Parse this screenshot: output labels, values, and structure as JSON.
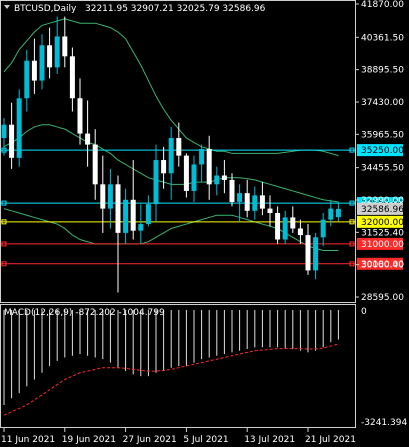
{
  "header": {
    "symbol": "BTCUSD,Daily",
    "ohlc": "32211.95 32907.21 32025.79 32586.96"
  },
  "chart_data": {
    "type": "candlestick",
    "price_axis": {
      "min": 28595,
      "max": 41870,
      "ticks": [
        "41870.00",
        "40361.50",
        "38895.50",
        "37430.00",
        "35965.50",
        "34455.50",
        "32990.00",
        "31525.40",
        "30060.40",
        "28595.00"
      ]
    },
    "x_labels": [
      "11 Jun 2021",
      "19 Jun 2021",
      "27 Jun 2021",
      "5 Jul 2021",
      "13 Jul 2021",
      "21 Jul 2021"
    ],
    "candles": [
      [
        35800,
        36700,
        35000,
        36400
      ],
      [
        36400,
        37400,
        34400,
        34900
      ],
      [
        34900,
        38000,
        34500,
        37600
      ],
      [
        37600,
        39800,
        37000,
        39300
      ],
      [
        39300,
        40300,
        37800,
        38400
      ],
      [
        38400,
        40500,
        38000,
        40000
      ],
      [
        40000,
        40800,
        38500,
        39000
      ],
      [
        39000,
        41300,
        38700,
        40400
      ],
      [
        40400,
        41300,
        39000,
        39500
      ],
      [
        39500,
        39900,
        37000,
        37600
      ],
      [
        37600,
        38500,
        35500,
        36000
      ],
      [
        36000,
        37500,
        34500,
        35500
      ],
      [
        35500,
        36200,
        33000,
        33700
      ],
      [
        33700,
        35000,
        31500,
        32600
      ],
      [
        32600,
        34400,
        31700,
        33700
      ],
      [
        33700,
        34100,
        28800,
        31500
      ],
      [
        31500,
        33500,
        31000,
        33000
      ],
      [
        33000,
        34800,
        31200,
        31600
      ],
      [
        31600,
        32800,
        31000,
        31900
      ],
      [
        31900,
        33200,
        31800,
        32800
      ],
      [
        32800,
        35500,
        32000,
        34800
      ],
      [
        34800,
        35400,
        33500,
        34200
      ],
      [
        34200,
        36300,
        33000,
        35800
      ],
      [
        35800,
        36500,
        34500,
        35000
      ],
      [
        35000,
        35100,
        33100,
        33400
      ],
      [
        33400,
        35000,
        32900,
        34600
      ],
      [
        34600,
        35500,
        33800,
        35300
      ],
      [
        35300,
        35900,
        33000,
        33700
      ],
      [
        33700,
        34500,
        33200,
        34100
      ],
      [
        34100,
        34800,
        33300,
        33900
      ],
      [
        33900,
        34200,
        32700,
        32900
      ],
      [
        32900,
        33700,
        32000,
        33300
      ],
      [
        33300,
        33900,
        32200,
        32500
      ],
      [
        32500,
        33600,
        32100,
        33200
      ],
      [
        33200,
        33800,
        32300,
        32600
      ],
      [
        32600,
        33200,
        31800,
        32400
      ],
      [
        32400,
        32700,
        31000,
        31200
      ],
      [
        31200,
        32500,
        31000,
        32200
      ],
      [
        32200,
        32700,
        31500,
        31700
      ],
      [
        31700,
        32100,
        31000,
        31400
      ],
      [
        31400,
        31900,
        29600,
        29800
      ],
      [
        29800,
        31500,
        29400,
        31300
      ],
      [
        31300,
        32400,
        30900,
        32100
      ],
      [
        32100,
        33000,
        31800,
        32600
      ],
      [
        32211.95,
        32907.21,
        32025.79,
        32586.96
      ]
    ],
    "bollinger": {
      "upper": [
        38800,
        39200,
        39800,
        40200,
        40600,
        40900,
        41000,
        41100,
        41200,
        41100,
        41000,
        41000,
        41000,
        40900,
        40800,
        40600,
        40300,
        39700,
        39100,
        38400,
        37700,
        37100,
        36600,
        36200,
        35800,
        35600,
        35400,
        35300,
        35200,
        35200,
        35100,
        35100,
        35100,
        35100,
        35100,
        35100,
        35100,
        35150,
        35200,
        35250,
        35250,
        35250,
        35200,
        35100,
        35000
      ],
      "middle": [
        35400,
        35600,
        35800,
        36100,
        36300,
        36400,
        36400,
        36300,
        36200,
        36000,
        35800,
        35600,
        35500,
        35300,
        35100,
        34800,
        34600,
        34400,
        34200,
        34000,
        33900,
        33800,
        33700,
        33700,
        33700,
        33800,
        33800,
        33800,
        33900,
        34000,
        34000,
        34000,
        33950,
        33900,
        33800,
        33700,
        33600,
        33500,
        33400,
        33300,
        33200,
        33100,
        33000,
        32950,
        32900
      ],
      "lower": [
        32600,
        32500,
        32400,
        32300,
        32200,
        32100,
        32000,
        31900,
        31700,
        31400,
        31200,
        31100,
        31000,
        31000,
        31000,
        31000,
        31000,
        31000,
        31000,
        31100,
        31300,
        31500,
        31700,
        31800,
        31900,
        32000,
        32100,
        32200,
        32300,
        32300,
        32300,
        32200,
        32100,
        32000,
        31900,
        31800,
        31700,
        31500,
        31300,
        31100,
        30900,
        30800,
        30700,
        30700,
        30700
      ]
    },
    "horizontal_levels": [
      {
        "label": "35250.00",
        "value": 35250,
        "color": "#00e5ff",
        "tag_text": "#000000"
      },
      {
        "label": "32850.00",
        "value": 32850,
        "color": "#00e5ff",
        "tag_text": "#000000"
      },
      {
        "label": "32000.00",
        "value": 32000,
        "color": "#ffff00",
        "tag_text": "#000000"
      },
      {
        "label": "31000.00",
        "value": 31000,
        "color": "#ff2a2a",
        "tag_text": "#ffffff"
      },
      {
        "label": "30100.00",
        "value": 30100,
        "color": "#ff2a2a",
        "tag_text": "#ffffff"
      }
    ],
    "current_price_label": "32586.96",
    "macd": {
      "label": "MACD(12,26,9) -872.202 -1004.799",
      "axis_top": "0",
      "axis_bottom": "-3241.394",
      "min": -3241.394,
      "max": 0,
      "histogram": [
        -2800,
        -2600,
        -2450,
        -2250,
        -2050,
        -1850,
        -1650,
        -1500,
        -1400,
        -1350,
        -1300,
        -1350,
        -1400,
        -1450,
        -1550,
        -1700,
        -1800,
        -1900,
        -1950,
        -1950,
        -1850,
        -1800,
        -1700,
        -1650,
        -1650,
        -1550,
        -1450,
        -1400,
        -1350,
        -1300,
        -1250,
        -1200,
        -1150,
        -1100,
        -1100,
        -1100,
        -1100,
        -1150,
        -1150,
        -1200,
        -1250,
        -1200,
        -1100,
        -950,
        -872.202
      ],
      "signal": [
        -3100,
        -3000,
        -2900,
        -2800,
        -2650,
        -2500,
        -2350,
        -2200,
        -2050,
        -1950,
        -1850,
        -1800,
        -1750,
        -1700,
        -1700,
        -1700,
        -1720,
        -1750,
        -1780,
        -1800,
        -1800,
        -1780,
        -1750,
        -1700,
        -1650,
        -1600,
        -1550,
        -1500,
        -1450,
        -1400,
        -1350,
        -1300,
        -1250,
        -1200,
        -1180,
        -1160,
        -1140,
        -1140,
        -1140,
        -1140,
        -1150,
        -1150,
        -1120,
        -1060,
        -1004.799
      ]
    }
  },
  "colors": {
    "bull": "#00bcd4",
    "bear": "#ffffff",
    "bands": "#3cb371",
    "signal": "#ff2a2a",
    "frame": "#cfcfcf"
  }
}
